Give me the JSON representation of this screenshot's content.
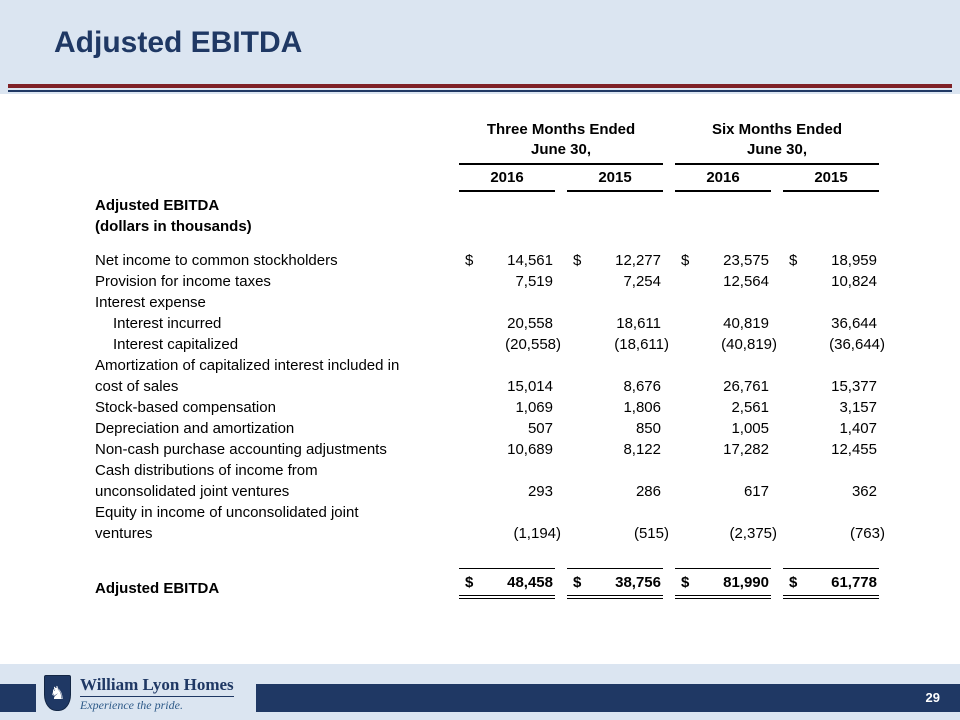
{
  "slide": {
    "title": "Adjusted EBITDA",
    "page_number": "29"
  },
  "colors": {
    "background": "#dbe5f1",
    "accent_navy": "#1f3864",
    "accent_maroon": "#7f2127",
    "table_text": "#000000"
  },
  "table": {
    "group_headers": [
      {
        "line1": "Three Months Ended",
        "line2": "June 30,"
      },
      {
        "line1": "Six Months Ended",
        "line2": "June 30,"
      }
    ],
    "year_headers": [
      "2016",
      "2015",
      "2016",
      "2015"
    ],
    "label_header_line1": "Adjusted EBITDA",
    "label_header_line2": "(dollars in thousands)",
    "rows": [
      {
        "label": "Net income to common stockholders",
        "dollar": "$",
        "values": [
          "14,561",
          "12,277",
          "23,575",
          "18,959"
        ]
      },
      {
        "label": "Provision for income taxes",
        "values": [
          "7,519",
          "7,254",
          "12,564",
          "10,824"
        ]
      },
      {
        "label": "Interest expense",
        "values": [
          "",
          "",
          "",
          ""
        ]
      },
      {
        "label": "Interest incurred",
        "values": [
          "20,558",
          "18,611",
          "40,819",
          "36,644"
        ]
      },
      {
        "label": "Interest capitalized",
        "values": [
          "(20,558)",
          "(18,611)",
          "(40,819)",
          "(36,644)"
        ]
      },
      {
        "label": "Amortization of capitalized interest included in\ncost of sales",
        "values": [
          "15,014",
          "8,676",
          "26,761",
          "15,377"
        ]
      },
      {
        "label": "Stock-based compensation",
        "values": [
          "1,069",
          "1,806",
          "2,561",
          "3,157"
        ]
      },
      {
        "label": "Depreciation and amortization",
        "values": [
          "507",
          "850",
          "1,005",
          "1,407"
        ]
      },
      {
        "label": "Non-cash purchase accounting adjustments",
        "values": [
          "10,689",
          "8,122",
          "17,282",
          "12,455"
        ]
      },
      {
        "label": "Cash distributions of income from\nunconsolidated joint ventures",
        "values": [
          "293",
          "286",
          "617",
          "362"
        ]
      },
      {
        "label": "Equity in income of unconsolidated joint\nventures",
        "values": [
          "(1,194)",
          "(515)",
          "(2,375)",
          "(763)"
        ]
      }
    ],
    "total_row": {
      "label": "Adjusted EBITDA",
      "dollar": "$",
      "values": [
        "48,458",
        "38,756",
        "81,990",
        "61,778"
      ]
    }
  },
  "footer": {
    "brand": "William Lyon Homes",
    "tagline": "Experience the pride.",
    "shield_glyph": "♞"
  }
}
